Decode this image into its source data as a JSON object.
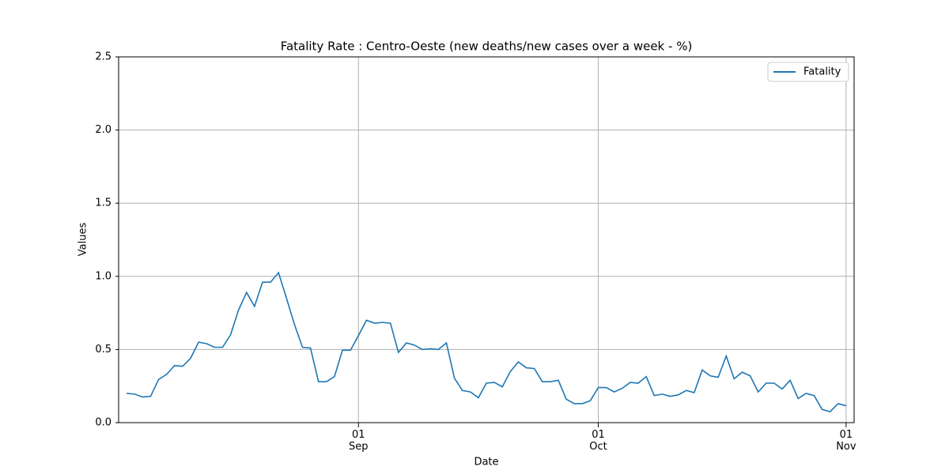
{
  "chart_data": {
    "type": "line",
    "title": "Fatality Rate : Centro-Oeste  (new deaths/new cases over a week - %)",
    "xlabel": "Date",
    "ylabel": "Values",
    "x": [
      "08-03",
      "08-04",
      "08-05",
      "08-06",
      "08-07",
      "08-08",
      "08-09",
      "08-10",
      "08-11",
      "08-12",
      "08-13",
      "08-14",
      "08-15",
      "08-16",
      "08-17",
      "08-18",
      "08-19",
      "08-20",
      "08-21",
      "08-22",
      "08-23",
      "08-24",
      "08-25",
      "08-26",
      "08-27",
      "08-28",
      "08-29",
      "08-30",
      "08-31",
      "09-01",
      "09-02",
      "09-03",
      "09-04",
      "09-05",
      "09-06",
      "09-07",
      "09-08",
      "09-09",
      "09-10",
      "09-11",
      "09-12",
      "09-13",
      "09-14",
      "09-15",
      "09-16",
      "09-17",
      "09-18",
      "09-19",
      "09-20",
      "09-21",
      "09-22",
      "09-23",
      "09-24",
      "09-25",
      "09-26",
      "09-27",
      "09-28",
      "09-29",
      "09-30",
      "10-01",
      "10-02",
      "10-03",
      "10-04",
      "10-05",
      "10-06",
      "10-07",
      "10-08",
      "10-09",
      "10-10",
      "10-11",
      "10-12",
      "10-13",
      "10-14",
      "10-15",
      "10-16",
      "10-17",
      "10-18",
      "10-19",
      "10-20",
      "10-21",
      "10-22",
      "10-23",
      "10-24",
      "10-25",
      "10-26",
      "10-27",
      "10-28",
      "10-29",
      "10-30",
      "10-31",
      "11-01"
    ],
    "series": [
      {
        "name": "Fatality",
        "color": "#1f77b4",
        "values": [
          0.2,
          0.195,
          0.175,
          0.18,
          0.295,
          0.33,
          0.39,
          0.385,
          0.44,
          0.55,
          0.54,
          0.515,
          0.515,
          0.6,
          0.77,
          0.89,
          0.795,
          0.96,
          0.96,
          1.025,
          0.85,
          0.67,
          0.515,
          0.51,
          0.28,
          0.28,
          0.315,
          0.495,
          0.495,
          0.595,
          0.7,
          0.68,
          0.685,
          0.68,
          0.48,
          0.545,
          0.53,
          0.5,
          0.505,
          0.5,
          0.545,
          0.305,
          0.22,
          0.21,
          0.17,
          0.27,
          0.275,
          0.245,
          0.35,
          0.415,
          0.375,
          0.37,
          0.28,
          0.28,
          0.29,
          0.16,
          0.13,
          0.13,
          0.15,
          0.24,
          0.24,
          0.21,
          0.235,
          0.275,
          0.27,
          0.315,
          0.185,
          0.195,
          0.18,
          0.19,
          0.22,
          0.205,
          0.36,
          0.32,
          0.31,
          0.455,
          0.3,
          0.345,
          0.32,
          0.21,
          0.27,
          0.27,
          0.23,
          0.29,
          0.165,
          0.2,
          0.185,
          0.09,
          0.075,
          0.13,
          0.115
        ]
      }
    ],
    "xlim": [
      "08-02",
      "11-02"
    ],
    "xticks": [
      {
        "value": "09-01",
        "label": "01\nSep"
      },
      {
        "value": "10-01",
        "label": "01\nOct"
      },
      {
        "value": "11-01",
        "label": "01\nNov"
      }
    ],
    "ylim": [
      0,
      2.5
    ],
    "yticks": [
      {
        "value": 0,
        "label": "0.0"
      },
      0.5,
      {
        "value": 1,
        "label": "1.0"
      },
      1.5,
      {
        "value": 2,
        "label": "2.0"
      },
      2.5
    ],
    "grid": true,
    "legend": "upper right"
  }
}
